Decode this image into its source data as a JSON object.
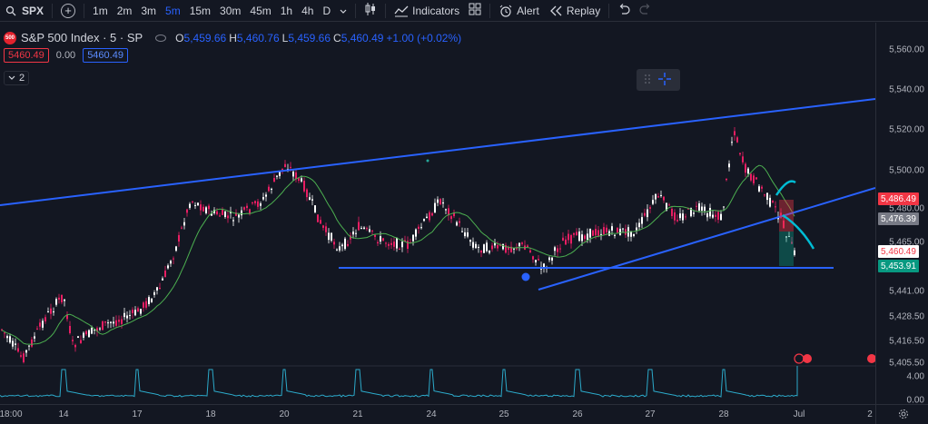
{
  "toolbar": {
    "symbol": "SPX",
    "timeframes": [
      "1m",
      "2m",
      "3m",
      "5m",
      "15m",
      "30m",
      "45m",
      "1h",
      "4h",
      "D"
    ],
    "active_timeframe": "5m",
    "indicators_label": "Indicators",
    "alert_label": "Alert",
    "replay_label": "Replay"
  },
  "legend": {
    "logo_text": "500",
    "title": "S&P 500 Index · 5 · SP",
    "open_key": "O",
    "open": "5,459.66",
    "high_key": "H",
    "high": "5,460.76",
    "low_key": "L",
    "low": "5,459.66",
    "close_key": "C",
    "close": "5,460.49",
    "change": "+1.00 (+0.02%)"
  },
  "price_boxes": {
    "sell": "5460.49",
    "spread": "0.00",
    "buy": "5460.49"
  },
  "indicator_count": "2",
  "price_axis": {
    "labels": [
      "5,560.00",
      "5,540.00",
      "5,520.00",
      "5,500.00",
      "5,480.00",
      "5,465.00",
      "5,441.00",
      "5,428.50",
      "5,416.50",
      "5,405.50"
    ],
    "volume_labels": [
      "4.00",
      "0.00"
    ],
    "badges": [
      {
        "value": "5,486.49",
        "color": "#f23645"
      },
      {
        "value": "5,476.39",
        "color": "#787b86"
      },
      {
        "value": "5,460.49",
        "color": "#ffffff",
        "text_color": "#f23645"
      },
      {
        "value": "5,453.91",
        "color": "#089981"
      }
    ]
  },
  "time_axis": {
    "labels": [
      "18:00",
      "14",
      "17",
      "18",
      "20",
      "21",
      "24",
      "25",
      "26",
      "27",
      "28",
      "Jul",
      "2"
    ]
  },
  "colors": {
    "trendline": "#2962ff",
    "ma": "#4caf50",
    "up": "#ffffff",
    "down": "#e91e63",
    "volume": "#2ca9c9"
  }
}
